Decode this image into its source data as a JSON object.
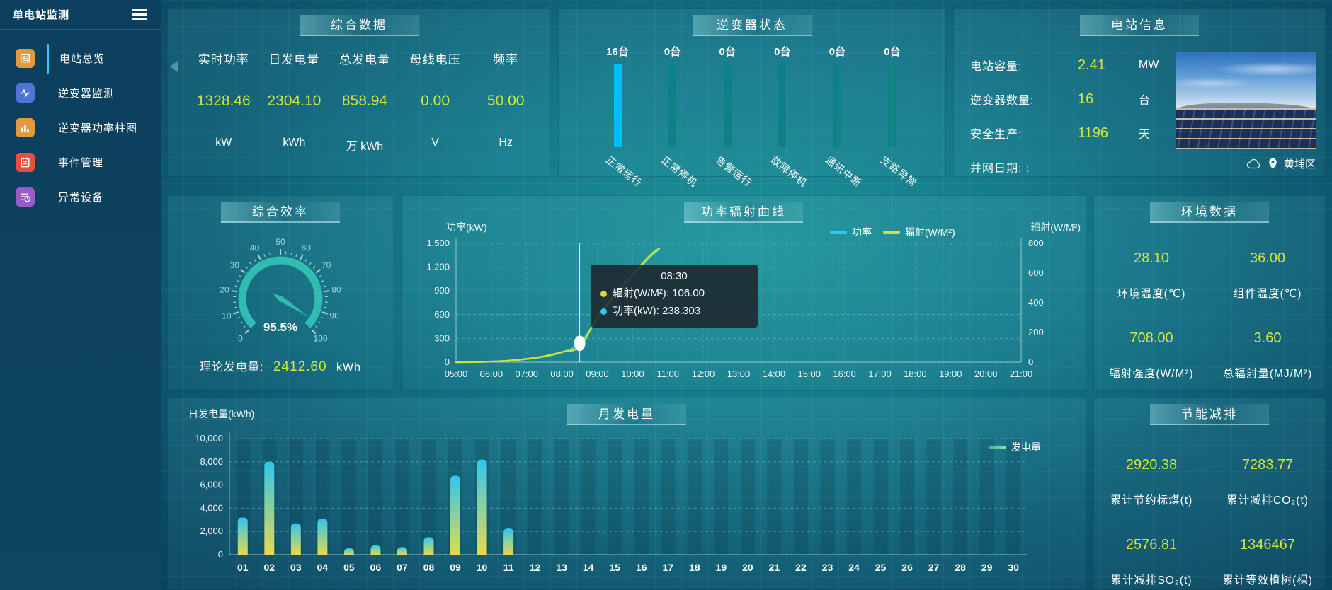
{
  "app": {
    "title": "单电站监测"
  },
  "sidebar": {
    "items": [
      {
        "label": "电站总览",
        "icon": "overview",
        "color": "#e29a3c",
        "active": true
      },
      {
        "label": "逆变器监测",
        "icon": "inverter-monitor",
        "color": "#4f74d8",
        "active": false
      },
      {
        "label": "逆变器功率柱图",
        "icon": "inverter-power",
        "color": "#e29a3c",
        "active": false
      },
      {
        "label": "事件管理",
        "icon": "event",
        "color": "#e8503d",
        "active": false
      },
      {
        "label": "异常设备",
        "icon": "abnormal-device",
        "color": "#9a5ac9",
        "active": false
      }
    ]
  },
  "panels": {
    "summary": {
      "title": "综合数据",
      "metrics": [
        {
          "label": "实时功率",
          "value": "1328.46",
          "unit": "kW"
        },
        {
          "label": "日发电量",
          "value": "2304.10",
          "unit": "kWh"
        },
        {
          "label": "总发电量",
          "value": "858.94",
          "unit": "万 kWh"
        },
        {
          "label": "母线电压",
          "value": "0.00",
          "unit": "V"
        },
        {
          "label": "频率",
          "value": "50.00",
          "unit": "Hz"
        }
      ]
    },
    "inverter_status": {
      "title": "逆变器状态",
      "colors": {
        "highlight": "#00bdf2",
        "normal": "#0e8086"
      },
      "bars": [
        {
          "count": "16台",
          "label": "正常运行",
          "highlight": true
        },
        {
          "count": "0台",
          "label": "正常停机",
          "highlight": false
        },
        {
          "count": "0台",
          "label": "告警运行",
          "highlight": false
        },
        {
          "count": "0台",
          "label": "故障停机",
          "highlight": false
        },
        {
          "count": "0台",
          "label": "通讯中断",
          "highlight": false
        },
        {
          "count": "0台",
          "label": "支路异常",
          "highlight": false
        }
      ]
    },
    "station_info": {
      "title": "电站信息",
      "rows": [
        {
          "label": "电站容量:",
          "value": "2.41",
          "unit": "MW"
        },
        {
          "label": "逆变器数量:",
          "value": "16",
          "unit": "台"
        },
        {
          "label": "安全生产:",
          "value": "1196",
          "unit": "天"
        },
        {
          "label": "并网日期: :",
          "value": "",
          "unit": ""
        }
      ],
      "location": "黄埔区"
    },
    "efficiency": {
      "title": "综合效率",
      "theory_label": "理论发电量:",
      "theory_value": "2412.60",
      "theory_unit": "kWh"
    },
    "environment": {
      "title": "环境数据",
      "metrics": [
        {
          "value": "28.10",
          "label": "环境温度(℃)"
        },
        {
          "value": "36.00",
          "label": "组件温度(℃)"
        },
        {
          "value": "708.00",
          "label": "辐射强度(W/M²)"
        },
        {
          "value": "3.60",
          "label": "总辐射量(MJ/M²)"
        }
      ]
    },
    "energy_saving": {
      "title": "节能减排",
      "metrics": [
        {
          "value": "2920.38",
          "label": "累计节约标煤(t)"
        },
        {
          "value": "7283.77",
          "label": "累计减排CO₂(t)"
        },
        {
          "value": "2576.81",
          "label": "累计减排SO₂(t)"
        },
        {
          "value": "1346467",
          "label": "累计等效植树(棵)"
        }
      ]
    }
  },
  "chart_data": [
    {
      "type": "line",
      "title": "功率辐射曲线",
      "legend": [
        {
          "name": "功率",
          "color": "#2ec9f2"
        },
        {
          "name": "辐射(W/M²)",
          "color": "#d8dd30"
        }
      ],
      "left_axis": {
        "label": "功率(kW)",
        "min": 0,
        "max": 1500,
        "ticks": [
          "0",
          "300",
          "600",
          "900",
          "1,200",
          "1,500"
        ]
      },
      "right_axis": {
        "label": "辐射(W/M²)",
        "min": 0,
        "max": 800,
        "ticks": [
          "0",
          "200",
          "400",
          "600",
          "800"
        ]
      },
      "x_axis": {
        "min": 5,
        "max": 21,
        "ticks": [
          "05:00",
          "06:00",
          "07:00",
          "08:00",
          "09:00",
          "10:00",
          "11:00",
          "12:00",
          "13:00",
          "14:00",
          "15:00",
          "16:00",
          "17:00",
          "18:00",
          "19:00",
          "20:00",
          "21:00"
        ]
      },
      "x_hours": [
        5,
        5.5,
        6,
        6.5,
        7,
        7.5,
        8,
        8.5,
        9,
        9.5,
        10,
        10.5,
        10.75
      ],
      "series": [
        {
          "name": "功率",
          "color": "#2ec9f2",
          "axis": "left",
          "values": [
            0,
            2,
            8,
            18,
            40,
            70,
            125,
            238.3,
            540,
            830,
            1080,
            1330,
            1420
          ]
        },
        {
          "name": "辐射(W/M²)",
          "color": "#d8dd30",
          "axis": "right",
          "values": [
            0,
            1,
            4,
            10,
            22,
            40,
            68,
            106,
            300,
            460,
            590,
            720,
            765
          ]
        }
      ],
      "tooltip": {
        "time": "08:30",
        "x_hour": 8.5,
        "items": [
          {
            "color": "#d8dd30",
            "text": "辐射(W/M²): 106.00"
          },
          {
            "color": "#2ec9f2",
            "text": "功率(kW): 238.303"
          }
        ]
      }
    },
    {
      "type": "bar",
      "title": "月发电量",
      "ylabel": "日发电量(kWh)",
      "legend": "发电量",
      "ylim": [
        0,
        10000
      ],
      "y_ticks": [
        "0",
        "2,000",
        "4,000",
        "6,000",
        "8,000",
        "10,000"
      ],
      "categories": [
        "01",
        "02",
        "03",
        "04",
        "05",
        "06",
        "07",
        "08",
        "09",
        "10",
        "11",
        "12",
        "13",
        "14",
        "15",
        "16",
        "17",
        "18",
        "19",
        "20",
        "21",
        "22",
        "23",
        "24",
        "25",
        "26",
        "27",
        "28",
        "29",
        "30"
      ],
      "values": [
        3200,
        8000,
        2700,
        3100,
        550,
        800,
        650,
        1500,
        6800,
        8200,
        2250,
        0,
        0,
        0,
        0,
        0,
        0,
        0,
        0,
        0,
        0,
        0,
        0,
        0,
        0,
        0,
        0,
        0,
        0,
        0
      ],
      "bar_gradient": [
        "#e6da4b",
        "#2fc6ee"
      ]
    },
    {
      "type": "gauge",
      "title": "综合效率",
      "value": 95.5,
      "display": "95.5%",
      "min": 0,
      "max": 100,
      "tick_step": 10,
      "color": "#2fbcb2"
    }
  ]
}
